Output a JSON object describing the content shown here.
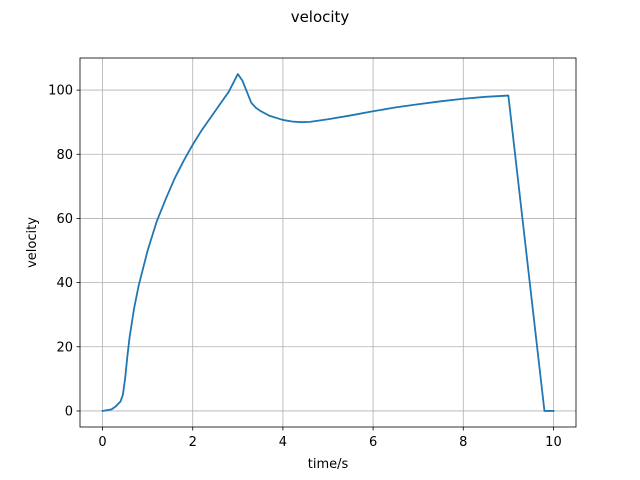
{
  "chart_data": {
    "type": "line",
    "title": "velocity",
    "xlabel": "time/s",
    "ylabel": "velocity",
    "xlim": [
      -0.5,
      10.5
    ],
    "ylim": [
      -5,
      110
    ],
    "xticks": [
      0,
      2,
      4,
      6,
      8,
      10
    ],
    "yticks": [
      0,
      20,
      40,
      60,
      80,
      100
    ],
    "grid": true,
    "line_color": "#1f77b4",
    "series": [
      {
        "x": [
          0.0,
          0.2,
          0.3,
          0.4,
          0.45,
          0.5,
          0.55,
          0.6,
          0.7,
          0.8,
          1.0,
          1.2,
          1.4,
          1.6,
          1.8,
          2.0,
          2.2,
          2.4,
          2.6,
          2.8,
          3.0,
          3.1,
          3.2,
          3.3,
          3.4,
          3.5,
          3.7,
          4.0,
          4.2,
          4.4,
          4.6,
          5.0,
          5.5,
          6.0,
          6.5,
          7.0,
          7.5,
          8.0,
          8.5,
          9.0,
          9.8,
          10.0
        ],
        "y": [
          0.0,
          0.5,
          1.5,
          3.0,
          5.0,
          10.0,
          17.0,
          23.0,
          32.0,
          39.0,
          50.0,
          59.0,
          66.0,
          72.5,
          78.0,
          83.0,
          87.5,
          91.5,
          95.5,
          99.5,
          105.0,
          103.0,
          99.5,
          96.0,
          94.5,
          93.5,
          92.0,
          90.7,
          90.2,
          90.0,
          90.1,
          90.9,
          92.1,
          93.4,
          94.6,
          95.6,
          96.5,
          97.3,
          97.9,
          98.3,
          0.0,
          0.0
        ]
      }
    ]
  }
}
